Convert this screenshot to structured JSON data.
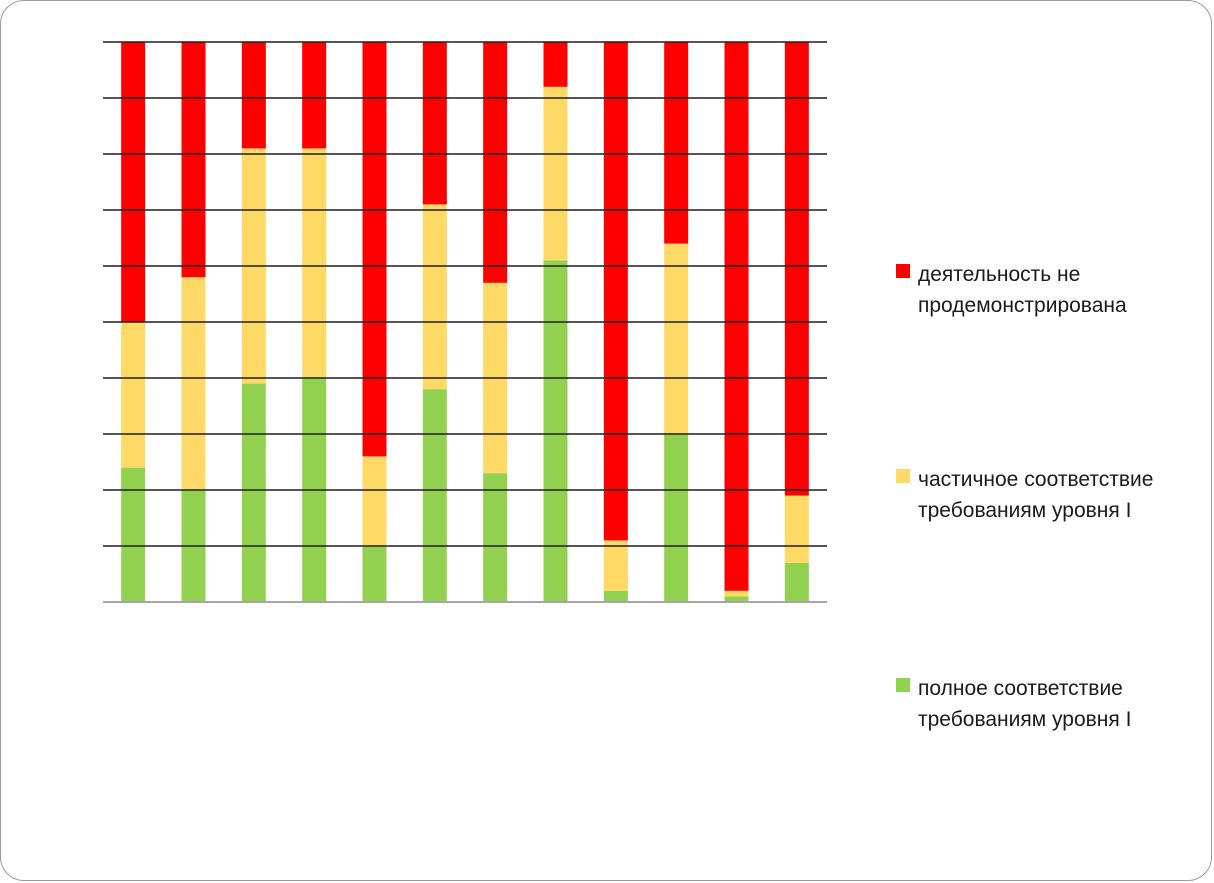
{
  "chart_data": {
    "type": "bar",
    "stacked": true,
    "title": "",
    "xlabel": "",
    "ylabel": "",
    "ylim": [
      0,
      100
    ],
    "grid": true,
    "legend_position": "right",
    "categories": [
      "",
      "",
      "",
      "",
      "",
      "",
      "",
      "",
      "",
      "",
      "",
      ""
    ],
    "series": [
      {
        "name": "полное соответствие требованиям уровня I",
        "color": "#92D050",
        "values": [
          24,
          20,
          39,
          40,
          10,
          38,
          23,
          61,
          2,
          30,
          1,
          7
        ]
      },
      {
        "name": "частичное соответствие требованиям уровня I",
        "color": "#FFD966",
        "values": [
          26,
          38,
          42,
          41,
          16,
          33,
          34,
          31,
          9,
          34,
          1,
          12
        ]
      },
      {
        "name": "деятельность не продемонстрирована",
        "color": "#FF0000",
        "values": [
          50,
          42,
          19,
          19,
          74,
          29,
          43,
          8,
          89,
          36,
          98,
          81
        ]
      }
    ]
  },
  "legend": {
    "items": [
      {
        "label": "деятельность не продемонстрирована",
        "color": "#FF0000"
      },
      {
        "label": "частичное соответствие требованиям уровня I",
        "color": "#FFD966"
      },
      {
        "label": "полное соответствие требованиям уровня I",
        "color": "#92D050"
      }
    ]
  }
}
